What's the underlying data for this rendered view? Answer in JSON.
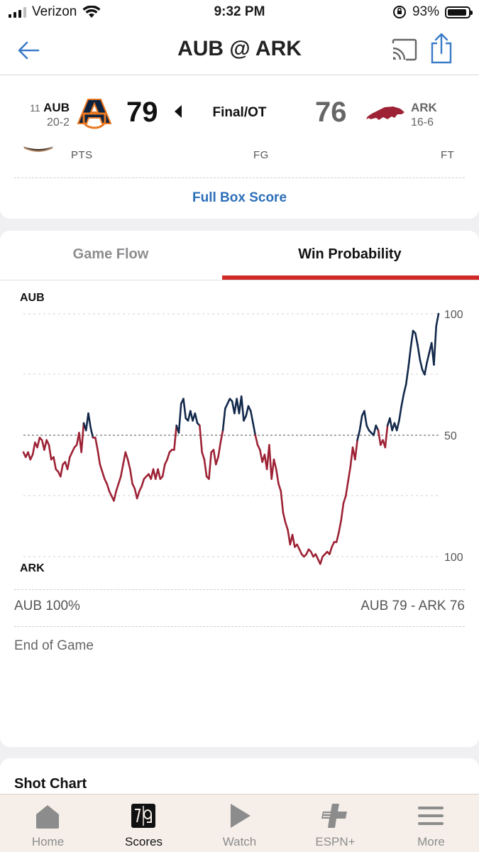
{
  "status_bar": {
    "carrier": "Verizon",
    "time": "9:32 PM",
    "battery": "93%",
    "battery_level": 0.93
  },
  "nav": {
    "title": "AUB @ ARK",
    "back_icon": "back-arrow-icon",
    "cast_icon": "cast-icon",
    "share_icon": "share-icon"
  },
  "game": {
    "away": {
      "rank": "11",
      "abbr": "AUB",
      "record": "20-2",
      "score": "79"
    },
    "home": {
      "abbr": "ARK",
      "record": "16-6",
      "score": "76"
    },
    "status": "Final/OT",
    "stat_headers": [
      "PTS",
      "FG",
      "FT"
    ],
    "box_score_link": "Full Box Score"
  },
  "tabs": [
    "Game Flow",
    "Win Probability"
  ],
  "active_tab": "Win Probability",
  "win_probability": {
    "top_team": "AUB",
    "bottom_team": "ARK",
    "current": "AUB 100%",
    "final_score": "AUB 79  - ARK 76",
    "status": "End of Game",
    "colors": {
      "aub": "#13294b",
      "ark": "#9d2235"
    }
  },
  "shot_chart": {
    "title": "Shot Chart"
  },
  "tab_bar": [
    {
      "label": "Home",
      "icon": "home-icon"
    },
    {
      "label": "Scores",
      "icon": "scores-icon",
      "active": true
    },
    {
      "label": "Watch",
      "icon": "play-icon"
    },
    {
      "label": "ESPN+",
      "icon": "espn-plus-icon"
    },
    {
      "label": "More",
      "icon": "menu-icon"
    }
  ],
  "chart_data": {
    "type": "line",
    "title": "",
    "xlabel": "",
    "ylabel": "",
    "y_tick_labels": [
      "100",
      "50",
      "100"
    ],
    "ylim": [
      -100,
      100
    ],
    "x": [
      0,
      1,
      2,
      3,
      4,
      5,
      6,
      7,
      8,
      9,
      10,
      11,
      12,
      13,
      14,
      15,
      16,
      17,
      18,
      19,
      20,
      21,
      22,
      23,
      24,
      25,
      26,
      27,
      28,
      29,
      30,
      31,
      32,
      33,
      34,
      35,
      36,
      37,
      38,
      39,
      40,
      41,
      42,
      43,
      44,
      45,
      46,
      47,
      48,
      49,
      50,
      51,
      52,
      53,
      54,
      55,
      56,
      57,
      58,
      59,
      60,
      61,
      62,
      63,
      64,
      65,
      66,
      67,
      68,
      69,
      70,
      71,
      72,
      73,
      74,
      75,
      76,
      77,
      78,
      79,
      80,
      81,
      82,
      83,
      84,
      85,
      86,
      87,
      88,
      89,
      90,
      91,
      92,
      93,
      94,
      95,
      96,
      97,
      98,
      99,
      100,
      101,
      102,
      103,
      104,
      105,
      106,
      107,
      108,
      109,
      110,
      111,
      112,
      113,
      114,
      115,
      116,
      117,
      118,
      119,
      120,
      121,
      122,
      123,
      124,
      125,
      126,
      127,
      128,
      129,
      130,
      131,
      132,
      133,
      134,
      135,
      136,
      137,
      138,
      139,
      140,
      141,
      142,
      143,
      144,
      145,
      146,
      147,
      148,
      149,
      150,
      151,
      152,
      153,
      154,
      155,
      156,
      157,
      158,
      159,
      160,
      161,
      162,
      163,
      164,
      165,
      166,
      167,
      168,
      169,
      170,
      171,
      172,
      173,
      174,
      175,
      176,
      177,
      178,
      179
    ],
    "series": [
      {
        "values": [
          -14,
          -18,
          -14,
          -20,
          -16,
          -6,
          -10,
          -2,
          -4,
          -12,
          -4,
          -8,
          -20,
          -18,
          -28,
          -30,
          -34,
          -24,
          -22,
          -28,
          -18,
          -14,
          -10,
          -8,
          2,
          -14,
          10,
          4,
          18,
          6,
          -2,
          -2,
          -12,
          -24,
          -30,
          -36,
          -40,
          -46,
          -50,
          -54,
          -46,
          -40,
          -34,
          -24,
          -14,
          -20,
          -28,
          -40,
          -44,
          -52,
          -46,
          -42,
          -36,
          -34,
          -32,
          -36,
          -28,
          -36,
          -28,
          -36,
          -34,
          -24,
          -20,
          -14,
          -12,
          -12,
          8,
          2,
          26,
          30,
          14,
          12,
          20,
          12,
          18,
          10,
          8,
          -14,
          -20,
          -34,
          -36,
          -14,
          -12,
          -24,
          -18,
          -6,
          4,
          22,
          26,
          30,
          28,
          18,
          30,
          18,
          32,
          12,
          16,
          24,
          20,
          10,
          0,
          -8,
          -12,
          -22,
          -16,
          -28,
          -8,
          -36,
          -20,
          -28,
          -40,
          -46,
          -64,
          -72,
          -78,
          -90,
          -82,
          -92,
          -90,
          -94,
          -98,
          -100,
          -98,
          -94,
          -96,
          -100,
          -98,
          -102,
          -106,
          -100,
          -98,
          -96,
          -98,
          -92,
          -88,
          -88,
          -80,
          -70,
          -56,
          -50,
          -38,
          -26,
          -10,
          -20,
          -4,
          4,
          16,
          20,
          8,
          4,
          2,
          0,
          8,
          4,
          -8,
          -4,
          -10,
          8,
          14,
          4,
          10,
          4,
          12,
          24,
          34,
          42,
          56,
          72,
          86,
          84,
          74,
          62,
          54,
          50,
          60,
          68,
          76,
          58,
          90,
          100
        ]
      }
    ]
  }
}
